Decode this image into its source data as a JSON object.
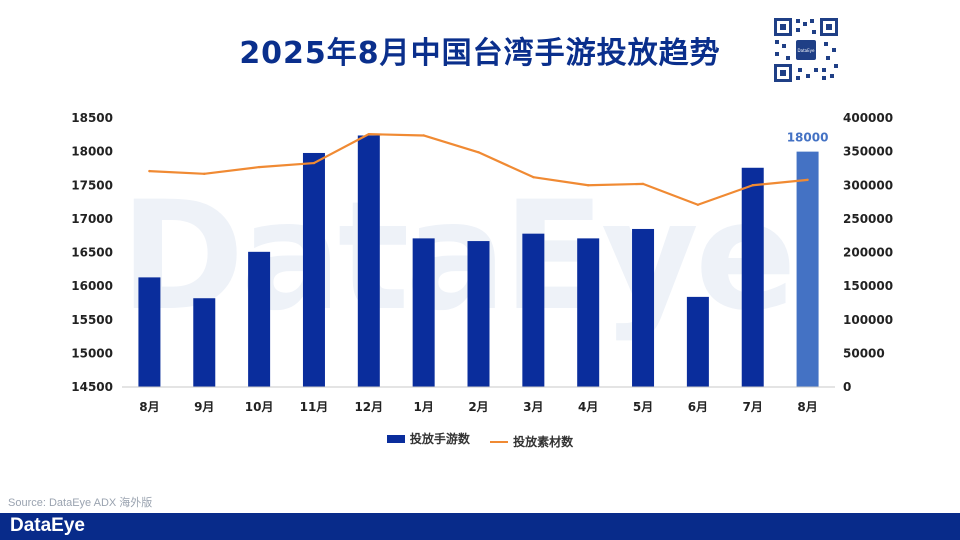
{
  "header": {
    "title": "2025年8月中国台湾手游投放趋势"
  },
  "watermark": "DataEye",
  "source": "Source: DataEye ADX 海外版",
  "footer": {
    "brand": "DataEye"
  },
  "qr": {
    "icon": "qr-code-icon",
    "center_label": "DataEye"
  },
  "colors": {
    "title": "#0a2f8c",
    "bar": "#0a2d9c",
    "bar_highlight": "#4472c4",
    "line": "#f08a33",
    "footer": "#082b8a"
  },
  "chart_data": {
    "type": "bar",
    "categories": [
      "8月",
      "9月",
      "10月",
      "11月",
      "12月",
      "1月",
      "2月",
      "3月",
      "4月",
      "5月",
      "6月",
      "7月",
      "8月"
    ],
    "series": [
      {
        "name": "投放手游数",
        "type": "bar",
        "axis": "left",
        "values": [
          16130,
          15820,
          16510,
          17980,
          18240,
          16710,
          16670,
          16780,
          16710,
          16850,
          15840,
          17760,
          18000
        ]
      },
      {
        "name": "投放素材数",
        "type": "line",
        "axis": "right",
        "values": [
          321000,
          317000,
          327000,
          333000,
          376000,
          374000,
          349000,
          312000,
          300000,
          302000,
          271000,
          300000,
          308000
        ]
      }
    ],
    "y_left": {
      "min": 14500,
      "max": 18500,
      "ticks": [
        14500,
        15000,
        15500,
        16000,
        16500,
        17000,
        17500,
        18000,
        18500
      ]
    },
    "y_right": {
      "min": 0,
      "max": 400000,
      "ticks": [
        0,
        50000,
        100000,
        150000,
        200000,
        250000,
        300000,
        350000,
        400000
      ]
    },
    "data_labels": [
      {
        "index": 12,
        "text": "18000"
      }
    ],
    "highlight_index": 12,
    "legend_position": "bottom-center",
    "grid": false
  }
}
